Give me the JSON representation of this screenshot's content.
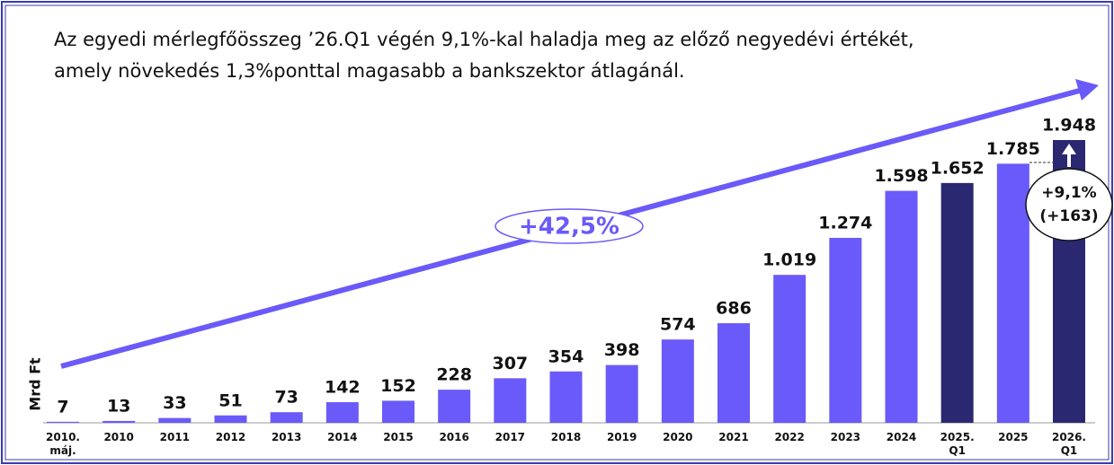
{
  "chart_data": {
    "type": "bar",
    "title_lines": [
      "Az egyedi mérlegfőösszeg ’26.Q1 végén 9,1%-kal haladja meg az előző negyedévi értékét,",
      "amely növekedés 1,3%ponttal magasabb a bankszektor átlagánál."
    ],
    "ylabel": "Mrd Ft",
    "categories": [
      "2010.\nmáj.",
      "2010",
      "2011",
      "2012",
      "2013",
      "2014",
      "2015",
      "2016",
      "2017",
      "2018",
      "2019",
      "2020",
      "2021",
      "2022",
      "2023",
      "2024",
      "2025.\nQ1",
      "2025",
      "2026.\nQ1"
    ],
    "values": [
      7,
      13,
      33,
      51,
      73,
      142,
      152,
      228,
      307,
      354,
      398,
      574,
      686,
      1019,
      1274,
      1598,
      1652,
      1785,
      1948
    ],
    "value_labels": [
      "7",
      "13",
      "33",
      "51",
      "73",
      "142",
      "152",
      "228",
      "307",
      "354",
      "398",
      "574",
      "686",
      "1.019",
      "1.274",
      "1.598",
      "1.652",
      "1.785",
      "1.948"
    ],
    "colors": [
      "#6a5af9",
      "#6a5af9",
      "#6a5af9",
      "#6a5af9",
      "#6a5af9",
      "#6a5af9",
      "#6a5af9",
      "#6a5af9",
      "#6a5af9",
      "#6a5af9",
      "#6a5af9",
      "#6a5af9",
      "#6a5af9",
      "#6a5af9",
      "#6a5af9",
      "#6a5af9",
      "#2a2870",
      "#6a5af9",
      "#2a2870"
    ],
    "ylim": [
      0,
      1948
    ],
    "annotations": {
      "trend": "+42,5%",
      "growth_pct": "+9,1%",
      "growth_abs": "(+163)"
    }
  }
}
